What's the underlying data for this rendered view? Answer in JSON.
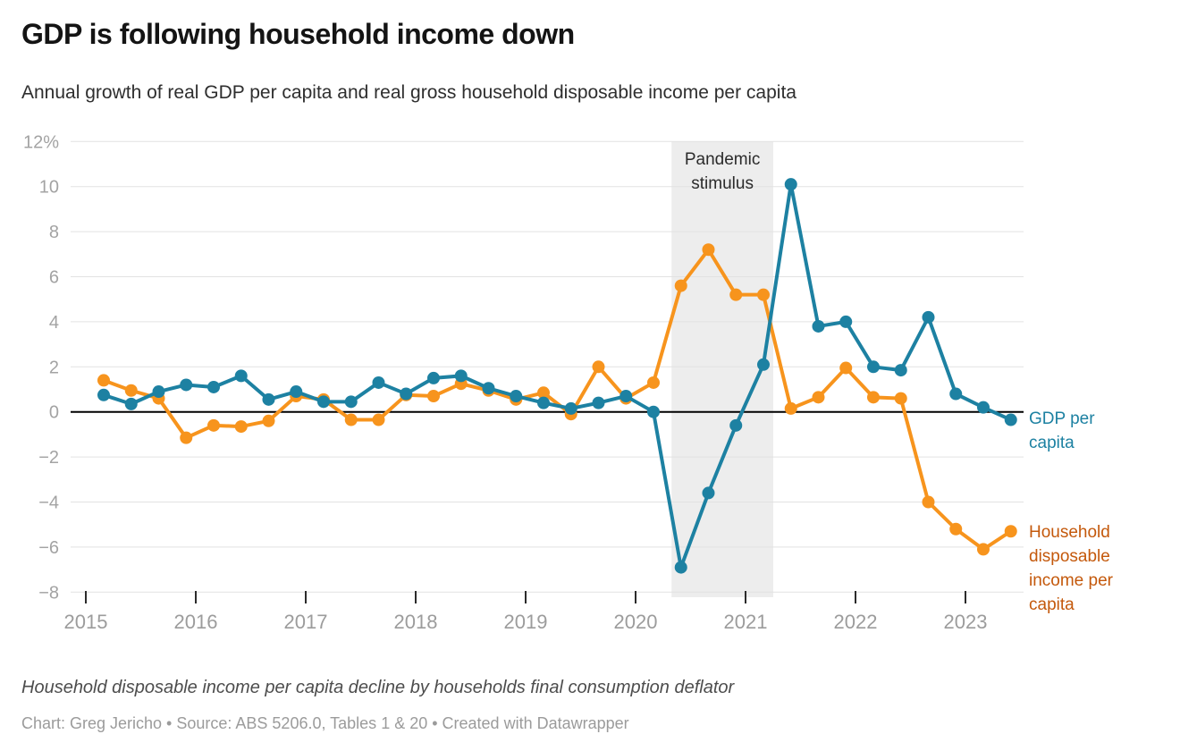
{
  "header": {
    "title": "GDP is following household income down",
    "subtitle": "Annual growth of real GDP per capita and real gross household disposable income per capita"
  },
  "chart_data": {
    "type": "line",
    "x_unit": "quarter",
    "x_range": [
      "2015-Q1",
      "2023-Q2"
    ],
    "x_tick_labels": [
      "2015",
      "2016",
      "2017",
      "2018",
      "2019",
      "2020",
      "2021",
      "2022",
      "2023"
    ],
    "y_ticks": [
      12,
      10,
      8,
      6,
      4,
      2,
      0,
      -2,
      -4,
      -6,
      -8
    ],
    "y_tick_labels": [
      "12%",
      "10",
      "8",
      "6",
      "4",
      "2",
      "0",
      "−2",
      "−4",
      "−6",
      "−8"
    ],
    "ylim": [
      -8,
      12
    ],
    "grid": "horizontal",
    "series": [
      {
        "id": "household-income",
        "name": "Household disposable income per capita",
        "color": "#f7941d",
        "label_color": "#c4590c",
        "values": [
          1.4,
          0.95,
          0.6,
          -1.15,
          -0.6,
          -0.65,
          -0.4,
          0.7,
          0.55,
          -0.35,
          -0.35,
          0.75,
          0.7,
          1.25,
          0.95,
          0.55,
          0.85,
          -0.1,
          2.0,
          0.6,
          1.3,
          5.6,
          7.2,
          5.2,
          5.2,
          0.15,
          0.65,
          1.95,
          0.65,
          0.6,
          -4.0,
          -5.2,
          -6.1,
          -5.3
        ]
      },
      {
        "id": "gdp",
        "name": "GDP per capita",
        "color": "#1d81a2",
        "label_color": "#1d81a2",
        "values": [
          0.75,
          0.35,
          0.9,
          1.2,
          1.1,
          1.6,
          0.55,
          0.9,
          0.45,
          0.45,
          1.3,
          0.8,
          1.5,
          1.6,
          1.05,
          0.7,
          0.4,
          0.15,
          0.4,
          0.7,
          0.0,
          -6.9,
          -3.6,
          -0.6,
          2.1,
          10.1,
          3.8,
          4.0,
          2.0,
          1.85,
          4.2,
          0.8,
          0.2,
          -0.35
        ]
      }
    ],
    "annotation": {
      "lines": [
        "Pandemic",
        "stimulus"
      ],
      "band_range": [
        "2020-Q2",
        "2021-Q1"
      ],
      "band_quarter_indices": [
        21,
        24
      ],
      "band_color": "#ededed"
    }
  },
  "footer": {
    "note": "Household disposable income per capita decline by households final consumption deflator",
    "credit": "Chart: Greg Jericho • Source: ABS 5206.0, Tables 1 & 20 • Created with Datawrapper"
  }
}
